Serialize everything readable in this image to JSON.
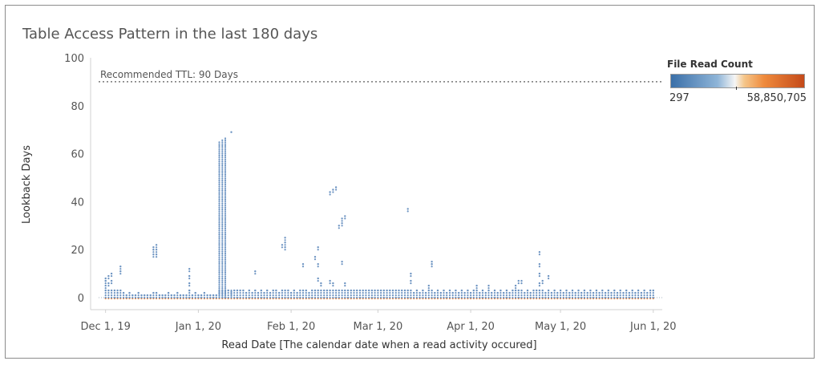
{
  "chart_data": {
    "type": "scatter",
    "title": "Table Access Pattern in the last 180 days",
    "xlabel": "Read Date [The calendar date when a read activity occured]",
    "ylabel": "Lookback Days",
    "xlim": [
      "2019-11-26",
      "2020-06-04"
    ],
    "ylim": [
      -5,
      100
    ],
    "x_ticks": [
      "Dec 1, 19",
      "Jan 1, 20",
      "Feb 1, 20",
      "Mar 1, 20",
      "Apr 1, 20",
      "May 1, 20",
      "Jun 1, 20"
    ],
    "y_ticks": [
      0,
      20,
      40,
      60,
      80,
      100
    ],
    "grid": false,
    "reference_line": {
      "value": 90,
      "label": "Recommended TTL: 90 Days"
    },
    "legend": {
      "title": "File Read Count",
      "min_label": "297",
      "max_label": "58,850,705",
      "placement": "top-right"
    },
    "colors": {
      "low": "#3a6fa8",
      "mid": "#f5f5f5",
      "high": "#c44a1a",
      "point_low": "#6d94c2",
      "point_high": "#ee7d2f"
    },
    "series": [
      {
        "points": [
          [
            "2019-12-01",
            3
          ],
          [
            "2019-12-01",
            5
          ],
          [
            "2019-12-01",
            7
          ],
          [
            "2019-12-01",
            8
          ],
          [
            "2019-12-02",
            3
          ],
          [
            "2019-12-02",
            6
          ],
          [
            "2019-12-02",
            9
          ],
          [
            "2019-12-03",
            3
          ],
          [
            "2019-12-03",
            7
          ],
          [
            "2019-12-03",
            10
          ],
          [
            "2019-12-04",
            3
          ],
          [
            "2019-12-05",
            2
          ],
          [
            "2019-12-05",
            3
          ],
          [
            "2019-12-06",
            3
          ],
          [
            "2019-12-06",
            11
          ],
          [
            "2019-12-06",
            13
          ],
          [
            "2019-12-07",
            2
          ],
          [
            "2019-12-08",
            1
          ],
          [
            "2019-12-09",
            2
          ],
          [
            "2019-12-10",
            1
          ],
          [
            "2019-12-11",
            1
          ],
          [
            "2019-12-12",
            2
          ],
          [
            "2019-12-13",
            1
          ],
          [
            "2019-12-14",
            1
          ],
          [
            "2019-12-15",
            1
          ],
          [
            "2019-12-16",
            1
          ],
          [
            "2019-12-17",
            2
          ],
          [
            "2019-12-17",
            18
          ],
          [
            "2019-12-17",
            20
          ],
          [
            "2019-12-17",
            21
          ],
          [
            "2019-12-18",
            2
          ],
          [
            "2019-12-18",
            18
          ],
          [
            "2019-12-18",
            20
          ],
          [
            "2019-12-18",
            22
          ],
          [
            "2019-12-19",
            1
          ],
          [
            "2019-12-20",
            1
          ],
          [
            "2019-12-21",
            1
          ],
          [
            "2019-12-22",
            2
          ],
          [
            "2019-12-23",
            1
          ],
          [
            "2019-12-24",
            1
          ],
          [
            "2019-12-25",
            2
          ],
          [
            "2019-12-26",
            1
          ],
          [
            "2019-12-27",
            1
          ],
          [
            "2019-12-28",
            1
          ],
          [
            "2019-12-29",
            3
          ],
          [
            "2019-12-29",
            6
          ],
          [
            "2019-12-29",
            9
          ],
          [
            "2019-12-29",
            12
          ],
          [
            "2019-12-30",
            1
          ],
          [
            "2019-12-31",
            2
          ],
          [
            "2020-01-01",
            1
          ],
          [
            "2020-01-02",
            1
          ],
          [
            "2020-01-03",
            2
          ],
          [
            "2020-01-04",
            1
          ],
          [
            "2020-01-05",
            1
          ],
          [
            "2020-01-06",
            1
          ],
          [
            "2020-01-07",
            1
          ],
          [
            "2020-01-08",
            15
          ],
          [
            "2020-01-08",
            30
          ],
          [
            "2020-01-08",
            45
          ],
          [
            "2020-01-08",
            55
          ],
          [
            "2020-01-08",
            65
          ],
          [
            "2020-01-09",
            15
          ],
          [
            "2020-01-09",
            30
          ],
          [
            "2020-01-09",
            45
          ],
          [
            "2020-01-09",
            55
          ],
          [
            "2020-01-09",
            66
          ],
          [
            "2020-01-10",
            3
          ],
          [
            "2020-01-10",
            15
          ],
          [
            "2020-01-10",
            30
          ],
          [
            "2020-01-10",
            45
          ],
          [
            "2020-01-10",
            55
          ],
          [
            "2020-01-10",
            67
          ],
          [
            "2020-01-11",
            3
          ],
          [
            "2020-01-12",
            3
          ],
          [
            "2020-01-12",
            69
          ],
          [
            "2020-01-13",
            3
          ],
          [
            "2020-01-14",
            3
          ],
          [
            "2020-01-15",
            3
          ],
          [
            "2020-01-16",
            3
          ],
          [
            "2020-01-17",
            2
          ],
          [
            "2020-01-18",
            3
          ],
          [
            "2020-01-19",
            2
          ],
          [
            "2020-01-20",
            3
          ],
          [
            "2020-01-20",
            11
          ],
          [
            "2020-01-21",
            2
          ],
          [
            "2020-01-22",
            3
          ],
          [
            "2020-01-23",
            2
          ],
          [
            "2020-01-24",
            3
          ],
          [
            "2020-01-25",
            2
          ],
          [
            "2020-01-26",
            3
          ],
          [
            "2020-01-27",
            3
          ],
          [
            "2020-01-28",
            2
          ],
          [
            "2020-01-29",
            3
          ],
          [
            "2020-01-29",
            22
          ],
          [
            "2020-01-30",
            3
          ],
          [
            "2020-01-30",
            21
          ],
          [
            "2020-01-30",
            23
          ],
          [
            "2020-01-30",
            25
          ],
          [
            "2020-01-31",
            3
          ],
          [
            "2020-02-01",
            2
          ],
          [
            "2020-02-02",
            3
          ],
          [
            "2020-02-03",
            2
          ],
          [
            "2020-02-04",
            3
          ],
          [
            "2020-02-05",
            3
          ],
          [
            "2020-02-05",
            14
          ],
          [
            "2020-02-06",
            3
          ],
          [
            "2020-02-07",
            2
          ],
          [
            "2020-02-08",
            3
          ],
          [
            "2020-02-09",
            3
          ],
          [
            "2020-02-09",
            17
          ],
          [
            "2020-02-10",
            3
          ],
          [
            "2020-02-10",
            8
          ],
          [
            "2020-02-10",
            14
          ],
          [
            "2020-02-10",
            21
          ],
          [
            "2020-02-11",
            3
          ],
          [
            "2020-02-11",
            6
          ],
          [
            "2020-02-12",
            3
          ],
          [
            "2020-02-13",
            3
          ],
          [
            "2020-02-14",
            3
          ],
          [
            "2020-02-14",
            7
          ],
          [
            "2020-02-14",
            44
          ],
          [
            "2020-02-15",
            3
          ],
          [
            "2020-02-15",
            6
          ],
          [
            "2020-02-15",
            45
          ],
          [
            "2020-02-16",
            3
          ],
          [
            "2020-02-16",
            46
          ],
          [
            "2020-02-17",
            3
          ],
          [
            "2020-02-17",
            30
          ],
          [
            "2020-02-18",
            3
          ],
          [
            "2020-02-18",
            15
          ],
          [
            "2020-02-18",
            31
          ],
          [
            "2020-02-18",
            33
          ],
          [
            "2020-02-19",
            3
          ],
          [
            "2020-02-19",
            6
          ],
          [
            "2020-02-19",
            34
          ],
          [
            "2020-02-20",
            3
          ],
          [
            "2020-02-21",
            3
          ],
          [
            "2020-02-22",
            3
          ],
          [
            "2020-02-23",
            3
          ],
          [
            "2020-02-24",
            3
          ],
          [
            "2020-02-25",
            3
          ],
          [
            "2020-02-26",
            3
          ],
          [
            "2020-02-27",
            3
          ],
          [
            "2020-02-28",
            3
          ],
          [
            "2020-02-29",
            3
          ],
          [
            "2020-03-01",
            3
          ],
          [
            "2020-03-02",
            3
          ],
          [
            "2020-03-03",
            3
          ],
          [
            "2020-03-04",
            3
          ],
          [
            "2020-03-05",
            3
          ],
          [
            "2020-03-06",
            3
          ],
          [
            "2020-03-07",
            3
          ],
          [
            "2020-03-08",
            3
          ],
          [
            "2020-03-09",
            3
          ],
          [
            "2020-03-10",
            3
          ],
          [
            "2020-03-11",
            3
          ],
          [
            "2020-03-11",
            37
          ],
          [
            "2020-03-12",
            3
          ],
          [
            "2020-03-12",
            7
          ],
          [
            "2020-03-12",
            10
          ],
          [
            "2020-03-13",
            2
          ],
          [
            "2020-03-14",
            3
          ],
          [
            "2020-03-15",
            2
          ],
          [
            "2020-03-16",
            3
          ],
          [
            "2020-03-17",
            2
          ],
          [
            "2020-03-18",
            3
          ],
          [
            "2020-03-18",
            5
          ],
          [
            "2020-03-19",
            3
          ],
          [
            "2020-03-19",
            14
          ],
          [
            "2020-03-19",
            15
          ],
          [
            "2020-03-20",
            2
          ],
          [
            "2020-03-21",
            3
          ],
          [
            "2020-03-22",
            2
          ],
          [
            "2020-03-23",
            3
          ],
          [
            "2020-03-24",
            2
          ],
          [
            "2020-03-25",
            3
          ],
          [
            "2020-03-26",
            2
          ],
          [
            "2020-03-27",
            3
          ],
          [
            "2020-03-28",
            2
          ],
          [
            "2020-03-29",
            3
          ],
          [
            "2020-03-30",
            2
          ],
          [
            "2020-03-31",
            3
          ],
          [
            "2020-04-01",
            2
          ],
          [
            "2020-04-02",
            3
          ],
          [
            "2020-04-03",
            3
          ],
          [
            "2020-04-03",
            5
          ],
          [
            "2020-04-04",
            2
          ],
          [
            "2020-04-05",
            3
          ],
          [
            "2020-04-06",
            2
          ],
          [
            "2020-04-07",
            3
          ],
          [
            "2020-04-07",
            5
          ],
          [
            "2020-04-08",
            2
          ],
          [
            "2020-04-09",
            3
          ],
          [
            "2020-04-10",
            2
          ],
          [
            "2020-04-11",
            3
          ],
          [
            "2020-04-12",
            2
          ],
          [
            "2020-04-13",
            3
          ],
          [
            "2020-04-14",
            2
          ],
          [
            "2020-04-15",
            3
          ],
          [
            "2020-04-16",
            3
          ],
          [
            "2020-04-16",
            5
          ],
          [
            "2020-04-17",
            3
          ],
          [
            "2020-04-17",
            7
          ],
          [
            "2020-04-18",
            3
          ],
          [
            "2020-04-18",
            7
          ],
          [
            "2020-04-19",
            2
          ],
          [
            "2020-04-20",
            3
          ],
          [
            "2020-04-21",
            2
          ],
          [
            "2020-04-22",
            3
          ],
          [
            "2020-04-23",
            3
          ],
          [
            "2020-04-24",
            3
          ],
          [
            "2020-04-24",
            6
          ],
          [
            "2020-04-24",
            10
          ],
          [
            "2020-04-24",
            14
          ],
          [
            "2020-04-24",
            19
          ],
          [
            "2020-04-25",
            3
          ],
          [
            "2020-04-25",
            7
          ],
          [
            "2020-04-26",
            2
          ],
          [
            "2020-04-27",
            3
          ],
          [
            "2020-04-27",
            9
          ],
          [
            "2020-04-28",
            2
          ],
          [
            "2020-04-29",
            3
          ],
          [
            "2020-04-30",
            2
          ],
          [
            "2020-05-01",
            3
          ],
          [
            "2020-05-02",
            2
          ],
          [
            "2020-05-03",
            3
          ],
          [
            "2020-05-04",
            2
          ],
          [
            "2020-05-05",
            3
          ],
          [
            "2020-05-06",
            2
          ],
          [
            "2020-05-07",
            3
          ],
          [
            "2020-05-08",
            2
          ],
          [
            "2020-05-09",
            3
          ],
          [
            "2020-05-10",
            2
          ],
          [
            "2020-05-11",
            3
          ],
          [
            "2020-05-12",
            2
          ],
          [
            "2020-05-13",
            3
          ],
          [
            "2020-05-14",
            2
          ],
          [
            "2020-05-15",
            3
          ],
          [
            "2020-05-16",
            2
          ],
          [
            "2020-05-17",
            3
          ],
          [
            "2020-05-18",
            2
          ],
          [
            "2020-05-19",
            3
          ],
          [
            "2020-05-20",
            2
          ],
          [
            "2020-05-21",
            3
          ],
          [
            "2020-05-22",
            2
          ],
          [
            "2020-05-23",
            3
          ],
          [
            "2020-05-24",
            2
          ],
          [
            "2020-05-25",
            3
          ],
          [
            "2020-05-26",
            2
          ],
          [
            "2020-05-27",
            3
          ],
          [
            "2020-05-28",
            2
          ],
          [
            "2020-05-29",
            3
          ],
          [
            "2020-05-30",
            2
          ],
          [
            "2020-05-31",
            3
          ],
          [
            "2020-06-01",
            3
          ]
        ]
      }
    ]
  }
}
